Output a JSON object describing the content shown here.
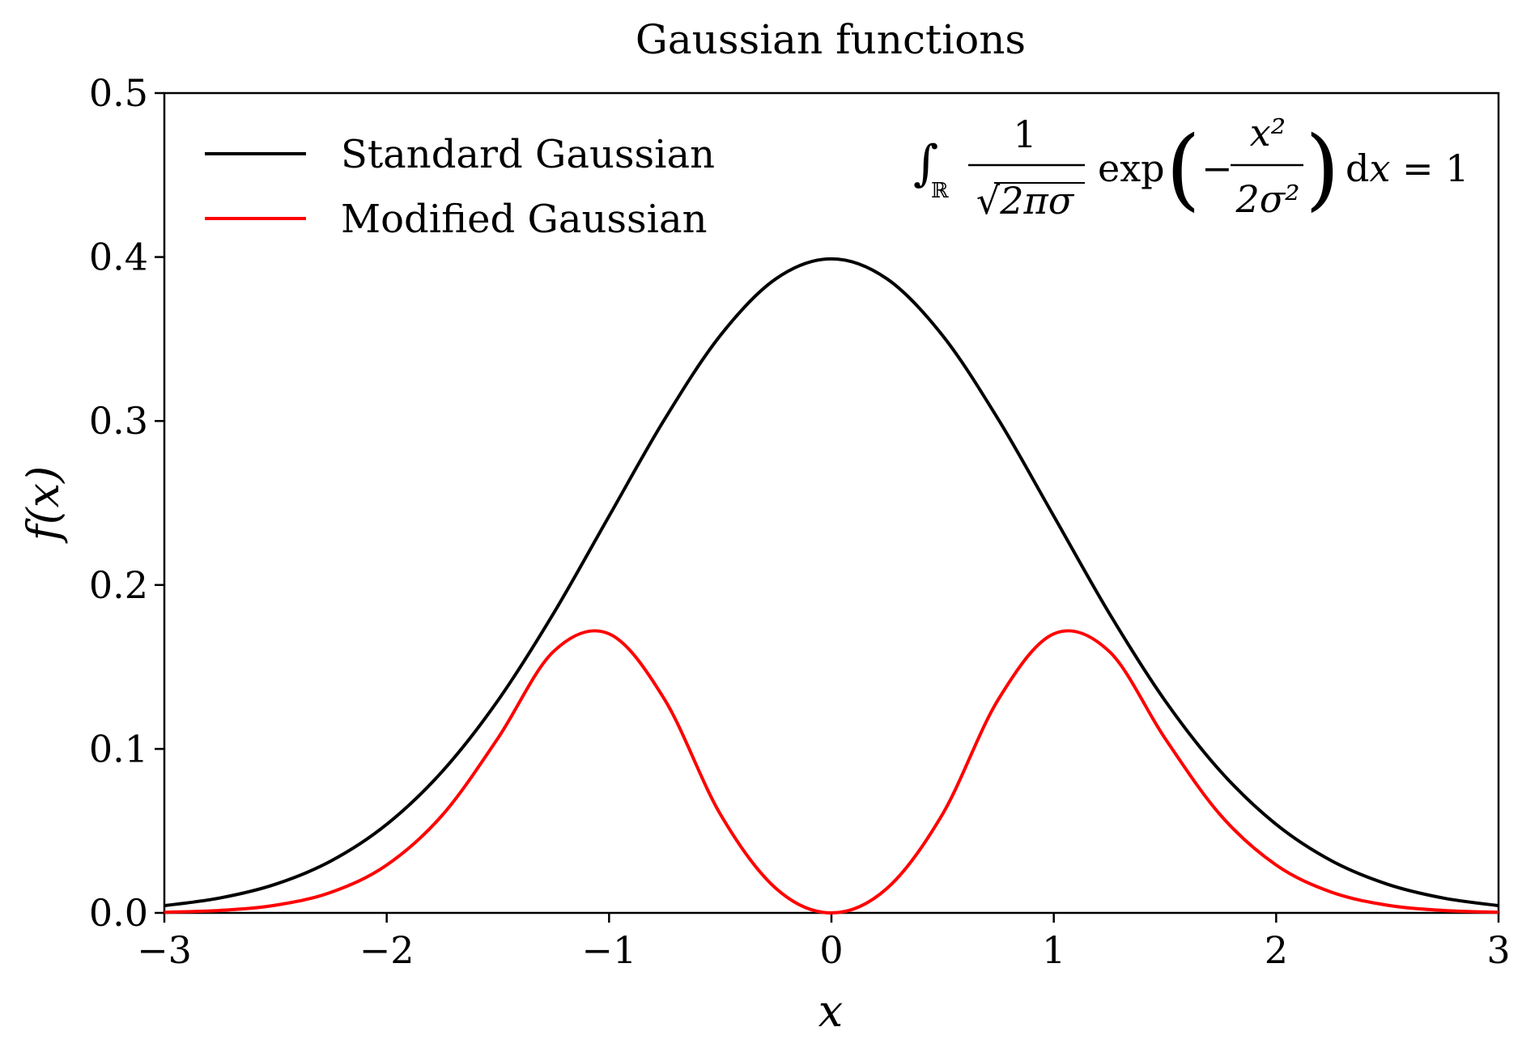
{
  "chart_data": {
    "type": "line",
    "title": "Gaussian functions",
    "xlabel": "x",
    "ylabel": "f(x)",
    "xlim": [
      -3,
      3
    ],
    "ylim": [
      0,
      0.5
    ],
    "xticks": [
      -3,
      -2,
      -1,
      0,
      1,
      2,
      3
    ],
    "xtick_labels": [
      "−3",
      "−2",
      "−1",
      "0",
      "1",
      "2",
      "3"
    ],
    "yticks": [
      0,
      0.1,
      0.2,
      0.3,
      0.4,
      0.5
    ],
    "ytick_labels": [
      "0.0",
      "0.1",
      "0.2",
      "0.3",
      "0.4",
      "0.5"
    ],
    "grid": false,
    "legend_position": "top-left",
    "series": [
      {
        "name": "Standard Gaussian",
        "color": "#000000",
        "x": [
          -3.0,
          -2.75,
          -2.5,
          -2.25,
          -2.0,
          -1.75,
          -1.5,
          -1.25,
          -1.0,
          -0.75,
          -0.5,
          -0.25,
          0.0,
          0.25,
          0.5,
          0.75,
          1.0,
          1.25,
          1.5,
          1.75,
          2.0,
          2.25,
          2.5,
          2.75,
          3.0
        ],
        "y": [
          0.0044,
          0.0091,
          0.0175,
          0.0317,
          0.054,
          0.0863,
          0.1295,
          0.1826,
          0.242,
          0.3011,
          0.3521,
          0.3867,
          0.3989,
          0.3867,
          0.3521,
          0.3011,
          0.242,
          0.1826,
          0.1295,
          0.0863,
          0.054,
          0.0317,
          0.0175,
          0.0091,
          0.0044
        ]
      },
      {
        "name": "Modified Gaussian",
        "color": "#ff0000",
        "x": [
          -3.0,
          -2.75,
          -2.5,
          -2.25,
          -2.0,
          -1.75,
          -1.5,
          -1.25,
          -1.0,
          -0.75,
          -0.5,
          -0.25,
          0.0,
          0.25,
          0.5,
          0.75,
          1.0,
          1.25,
          1.5,
          1.75,
          2.0,
          2.25,
          2.5,
          2.75,
          3.0
        ],
        "y": [
          0.0004,
          0.0015,
          0.0047,
          0.0126,
          0.0292,
          0.0596,
          0.1065,
          0.1594,
          0.1702,
          0.1301,
          0.0603,
          0.015,
          0.0,
          0.015,
          0.0603,
          0.1301,
          0.1702,
          0.1594,
          0.1065,
          0.0596,
          0.0292,
          0.0126,
          0.0047,
          0.0015,
          0.0004
        ]
      }
    ],
    "annotations": [
      {
        "text": "∫ℝ 1/√(2πσ) exp(−x²/(2σ²)) dx = 1",
        "position": "top-right"
      }
    ]
  }
}
